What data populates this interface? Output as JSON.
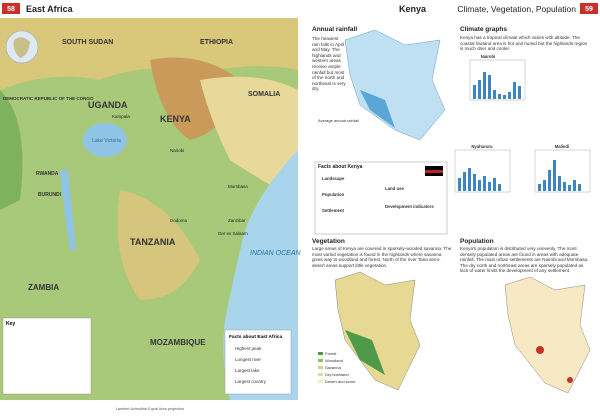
{
  "left_page": {
    "page_number": "58",
    "title": "East Africa",
    "labels": [
      "SOUTH SUDAN",
      "ETHIOPIA",
      "SOMALIA",
      "UGANDA",
      "KENYA",
      "TANZANIA",
      "ZAMBIA",
      "MOZAMBIQUE",
      "RWANDA",
      "BURUNDI",
      "DEMOCRATIC REPUBLIC OF THE CONGO",
      "INDIAN OCEAN",
      "Lake Victoria",
      "Nairobi",
      "Dar es Salaam",
      "Mombasa",
      "Kampala",
      "Dodoma",
      "Zanzibar"
    ],
    "key_title": "Key",
    "facts_title": "Facts about East Africa",
    "facts": [
      "Highest peak",
      "Longest river",
      "Largest lake",
      "Largest country"
    ],
    "projection": "Lambert Azimuthal Equal Area projection"
  },
  "right_page": {
    "page_number": "59",
    "title": "Kenya",
    "subtitle": "Climate, Vegetation, Population",
    "rainfall": {
      "title": "Annual rainfall",
      "text": "The heaviest rain falls in April and May. The highlands and western areas receive ample rainfall but most of the north and northeast is very dry.",
      "legend_title": "Average annual rainfall"
    },
    "climate": {
      "title": "Climate graphs",
      "text": "Kenya has a tropical climate which varies with altitude. The coastal lowland area is hot and humid but the highlands region is much drier and cooler.",
      "graphs": [
        "Nairobi",
        "Nyahururu",
        "Malindi"
      ]
    },
    "facts": {
      "title": "Facts about Kenya",
      "items": [
        "Landscape",
        "Population",
        "Settlement",
        "Land use",
        "Development indicators"
      ]
    },
    "vegetation": {
      "title": "Vegetation",
      "text": "Large areas of Kenya are covered in sparsely-wooded savanna. The most varied vegetation is found in the highlands where savanna gives way to woodland and forest. North of the river Tana semi-desert areas support little vegetation.",
      "legend": [
        "Forest",
        "Woodland",
        "Savanna",
        "Dry bushland",
        "Desert and scrub"
      ]
    },
    "population": {
      "title": "Population",
      "text": "Kenya's population is distributed very unevenly. The most densely populated areas are found in areas with adequate rainfall. The main urban settlements are Nairobi and Mombasa. The dry north and northeast areas are sparsely populated as lack of water limits the development of any settlement."
    }
  }
}
